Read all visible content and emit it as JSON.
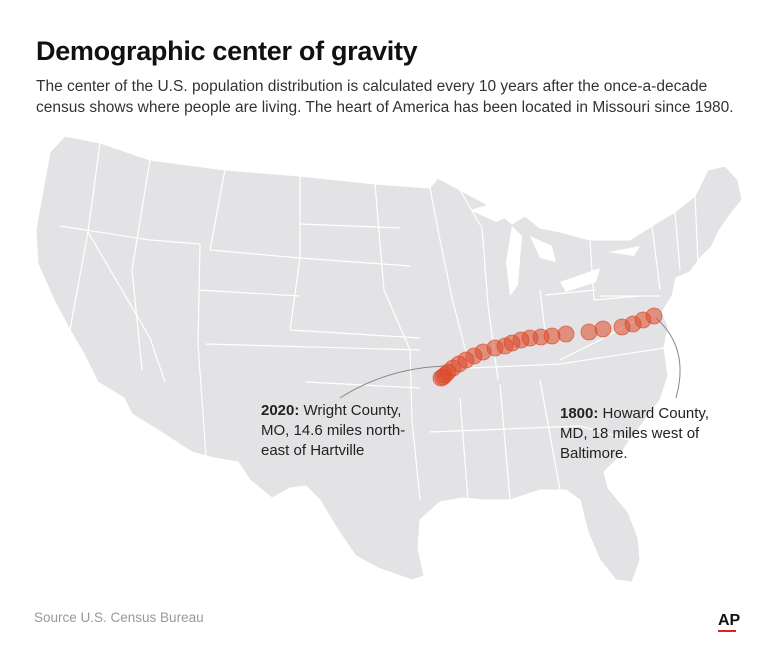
{
  "header": {
    "title": "Demographic center of gravity",
    "subtitle": "The center of the U.S. population distribution is calculated every 10 years after the once-a-decade census shows where people are living. The heart of America has been located in Missouri since 1980."
  },
  "annotations": {
    "a2020": {
      "year": "2020:",
      "text": "Wright County, MO, 14.6 miles north-east of Hartville"
    },
    "a1800": {
      "year": "1800:",
      "text": "Howard County, MD, 18 miles west of Baltimore."
    }
  },
  "footer": {
    "source": "Source  U.S. Census Bureau",
    "logo": "AP"
  },
  "colors": {
    "land": "#e3e3e5",
    "borders": "#ffffff",
    "marker": "#dd4a2a",
    "leader": "#888888"
  },
  "centers": {
    "count": 23,
    "first_year": 1800,
    "last_year": 2020,
    "interval_years": 10,
    "start_place": "Howard County, MD",
    "end_place": "Wright County, MO"
  }
}
